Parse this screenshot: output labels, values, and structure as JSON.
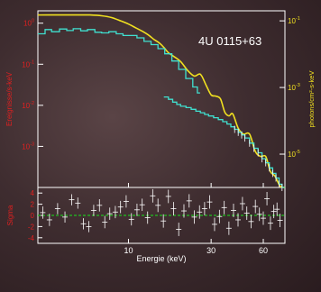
{
  "colors": {
    "frame": "#ffffff",
    "data": "#40e0d0",
    "model": "#f0e020",
    "left_axis": "#e02020",
    "right_axis": "#f0e020",
    "zero_line": "#20c020",
    "residuals": "#ffffff"
  },
  "chart_data": [
    {
      "type": "line",
      "panel": "spectrum",
      "source_label": "4U 0115+63",
      "ylabel_left": "Ereignisse/s-keV",
      "ylabel_right": "photons/cm²-s-keV",
      "xlabel": "Energie (keV)",
      "xscale": "log",
      "yscale": "log",
      "xlim": [
        3,
        80
      ],
      "ylim": [
        0.0001,
        2
      ],
      "y2lim": [
        1e-06,
        0.2
      ],
      "left_ticks": [
        {
          "v": 0.001,
          "b": "10",
          "e": "-3"
        },
        {
          "v": 0.01,
          "b": "10",
          "e": "-2"
        },
        {
          "v": 0.1,
          "b": "10",
          "e": "-1"
        },
        {
          "v": 1,
          "b": "10",
          "e": "0"
        }
      ],
      "right_ticks": [
        {
          "v": 1e-05,
          "b": "10",
          "e": "-5"
        },
        {
          "v": 0.001,
          "b": "10",
          "e": "-3"
        },
        {
          "v": 0.1,
          "b": "10",
          "e": "-1"
        }
      ],
      "x_ticks": [
        {
          "v": 10,
          "label": "10"
        },
        {
          "v": 30,
          "label": "30"
        },
        {
          "v": 60,
          "label": "60"
        }
      ],
      "series": [
        {
          "role": "data_low",
          "x": [
            3.0,
            3.3,
            3.6,
            4.0,
            4.4,
            4.8,
            5.3,
            5.8,
            6.4,
            7.0,
            7.7,
            8.5,
            9.3,
            10.2,
            11.2,
            12.3,
            13.5,
            14.8,
            16.2,
            17.8,
            19.5,
            21.4,
            23.5,
            25.0
          ],
          "y": [
            0.55,
            0.7,
            0.62,
            0.72,
            0.66,
            0.73,
            0.65,
            0.7,
            0.6,
            0.58,
            0.62,
            0.55,
            0.5,
            0.5,
            0.44,
            0.36,
            0.3,
            0.24,
            0.18,
            0.12,
            0.075,
            0.045,
            0.028,
            0.02
          ]
        },
        {
          "role": "data_high",
          "x": [
            16,
            17,
            18,
            19,
            20,
            21.5,
            23,
            24.5,
            26,
            27.5,
            29,
            31,
            33,
            35,
            37,
            39,
            41,
            43,
            45,
            47,
            50,
            53,
            56,
            59,
            62,
            65,
            68,
            71,
            74,
            77
          ],
          "y": [
            0.016,
            0.014,
            0.012,
            0.0105,
            0.0095,
            0.0088,
            0.008,
            0.0072,
            0.0066,
            0.006,
            0.0055,
            0.005,
            0.0045,
            0.004,
            0.0035,
            0.003,
            0.0026,
            0.0022,
            0.0019,
            0.0016,
            0.0012,
            0.0009,
            0.0007,
            0.0005,
            0.0004,
            0.0003,
            0.00022,
            0.00017,
            0.00012,
            0.0001
          ]
        },
        {
          "role": "model",
          "axis": "right",
          "x": [
            3,
            4,
            5,
            6,
            7,
            8,
            9,
            10,
            11,
            12,
            13,
            14,
            15,
            16,
            17,
            18,
            20,
            22,
            24,
            26,
            28,
            30,
            32,
            34,
            36,
            38,
            40,
            43,
            46,
            50,
            54,
            58,
            62,
            66,
            70,
            75,
            80
          ],
          "y": [
            0.15,
            0.15,
            0.15,
            0.15,
            0.142,
            0.125,
            0.1,
            0.08,
            0.062,
            0.049,
            0.038,
            0.028,
            0.022,
            0.016,
            0.011,
            0.009,
            0.006,
            0.0032,
            0.0022,
            0.0025,
            0.0012,
            0.0006,
            0.00055,
            0.00045,
            0.00018,
            0.00014,
            0.00016,
            6e-05,
            4e-05,
            4e-05,
            1.2e-05,
            8.5e-06,
            8.5e-06,
            3e-06,
            2.2e-06,
            1.1e-06,
            1e-06
          ]
        }
      ]
    },
    {
      "type": "scatter",
      "panel": "residuals",
      "ylabel": "Sigma",
      "xlabel": "Energie (keV)",
      "xscale": "log",
      "xlim": [
        3,
        80
      ],
      "ylim": [
        -5,
        5
      ],
      "y_ticks": [
        -4,
        -2,
        0,
        2,
        4
      ],
      "zero_line": 0,
      "series": [
        {
          "role": "residuals",
          "x": [
            3.2,
            3.5,
            3.9,
            4.3,
            4.7,
            5.1,
            5.5,
            5.9,
            6.3,
            6.8,
            7.3,
            7.8,
            8.4,
            9.0,
            9.7,
            10.4,
            11.2,
            12.0,
            12.9,
            13.8,
            14.8,
            15.9,
            17.0,
            18.2,
            19.5,
            20.9,
            22.4,
            24.0,
            25.7,
            27.5,
            29.4,
            31.4,
            33.5,
            35.7,
            38.0,
            40.4,
            42.9,
            45.5,
            48.2,
            51.0,
            54.0,
            57.0,
            60.0,
            63.0,
            66.0,
            69.0,
            72.0,
            75.0
          ],
          "y": [
            0.5,
            -0.8,
            1.2,
            -0.3,
            2.8,
            2.2,
            -1.5,
            -2.0,
            0.9,
            1.8,
            -1.2,
            0.3,
            0.6,
            1.5,
            2.5,
            -0.7,
            1.0,
            1.9,
            -0.4,
            3.5,
            1.8,
            -1.0,
            3.4,
            1.2,
            -2.5,
            0.8,
            2.6,
            -0.3,
            0.6,
            1.2,
            2.4,
            -1.6,
            -0.2,
            1.4,
            -2.3,
            0.9,
            -0.8,
            2.1,
            0.4,
            -1.1,
            1.6,
            0.2,
            -0.5,
            3.0,
            -1.4,
            0.7,
            1.1,
            -0.9
          ],
          "err": [
            1.1,
            1.1,
            1.0,
            1.0,
            1.0,
            1.0,
            1.0,
            1.0,
            1.0,
            1.1,
            1.1,
            1.1,
            1.1,
            1.1,
            1.1,
            1.1,
            1.1,
            1.1,
            1.1,
            1.2,
            1.2,
            1.2,
            1.2,
            1.2,
            1.2,
            1.2,
            1.2,
            1.2,
            1.2,
            1.2,
            1.2,
            1.2,
            1.2,
            1.2,
            1.2,
            1.2,
            1.2,
            1.2,
            1.2,
            1.2,
            1.2,
            1.2,
            1.2,
            1.2,
            1.2,
            1.2,
            1.2,
            1.2
          ]
        }
      ]
    }
  ]
}
